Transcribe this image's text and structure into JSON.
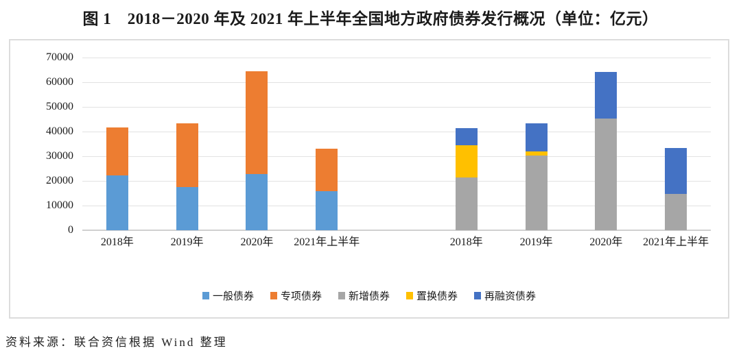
{
  "title": "图 1　2018－2020 年及 2021 年上半年全国地方政府债券发行概况（单位：亿元）",
  "source_note": "资料来源：联合资信根据 Wind 整理",
  "chart_data": {
    "type": "bar",
    "subtype": "stacked-grouped",
    "unit": "亿元",
    "ylim": [
      0,
      70000
    ],
    "ytick_interval": 10000,
    "yticks": [
      0,
      10000,
      20000,
      30000,
      40000,
      50000,
      60000,
      70000
    ],
    "grid": true,
    "legend_position": "bottom-center",
    "categories": [
      "2018年",
      "2019年",
      "2020年",
      "2021年上半年"
    ],
    "groups": [
      {
        "id": "group-left",
        "series": [
          {
            "name": "一般债券",
            "color": "#5B9BD5",
            "values": [
              22100,
              17600,
              22700,
              15900
            ]
          },
          {
            "name": "专项债券",
            "color": "#ED7D31",
            "values": [
              19500,
              25900,
              41600,
              17300
            ]
          }
        ]
      },
      {
        "id": "group-right",
        "series": [
          {
            "name": "新增债券",
            "color": "#A6A6A6",
            "values": [
              21500,
              30400,
              45400,
              14700
            ]
          },
          {
            "name": "置换债券",
            "color": "#FFC000",
            "values": [
              13100,
              1700,
              0,
              0
            ]
          },
          {
            "name": "再融资债券",
            "color": "#4472C4",
            "values": [
              7000,
              11400,
              18900,
              18500
            ]
          }
        ]
      }
    ],
    "legend": [
      {
        "label": "一般债券",
        "color": "#5B9BD5"
      },
      {
        "label": "专项债券",
        "color": "#ED7D31"
      },
      {
        "label": "新增债券",
        "color": "#A6A6A6"
      },
      {
        "label": "置换债券",
        "color": "#FFC000"
      },
      {
        "label": "再融资债券",
        "color": "#4472C4"
      }
    ],
    "colors": {
      "gridline": "#E2E2E2",
      "axis_line": "#D0D0D0",
      "frame_border": "#DCDCDC",
      "text": "#1A1A1A"
    }
  }
}
